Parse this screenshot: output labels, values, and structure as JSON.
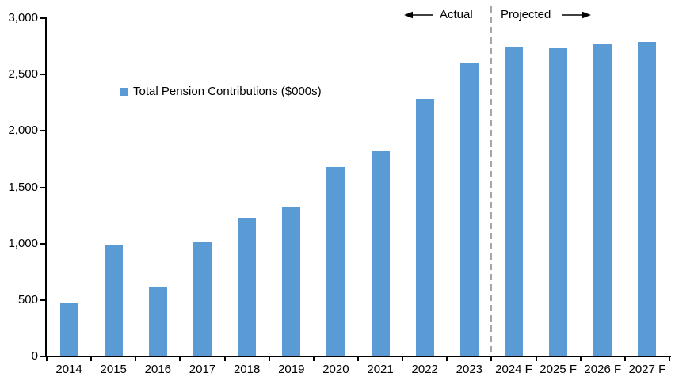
{
  "chart_data": {
    "type": "bar",
    "title": "",
    "series_name": "Total Pension Contributions ($000s)",
    "categories": [
      "2014",
      "2015",
      "2016",
      "2017",
      "2018",
      "2019",
      "2020",
      "2021",
      "2022",
      "2023",
      "2024 F",
      "2025 F",
      "2026 F",
      "2027 F"
    ],
    "values": [
      470,
      990,
      610,
      1020,
      1230,
      1320,
      1680,
      1820,
      2280,
      2610,
      2750,
      2740,
      2770,
      2790
    ],
    "xlabel": "",
    "ylabel": "",
    "ylim": [
      0,
      3000
    ],
    "ytick_step": 500,
    "ytick_labels": [
      "0",
      "500",
      "1,000",
      "1,500",
      "2,000",
      "2,500",
      "3,000"
    ],
    "grid": false,
    "legend_position": "inside-upper-left",
    "bar_color": "#5B9BD5",
    "annotations": {
      "actual_label": "Actual",
      "projected_label": "Projected",
      "left_arrow_icon": "arrow-left-icon",
      "right_arrow_icon": "arrow-right-icon",
      "divider_after_category": "2023",
      "divider_color": "#A6A6A6"
    },
    "axis_color": "#000000",
    "background_color": "#FFFFFF"
  }
}
